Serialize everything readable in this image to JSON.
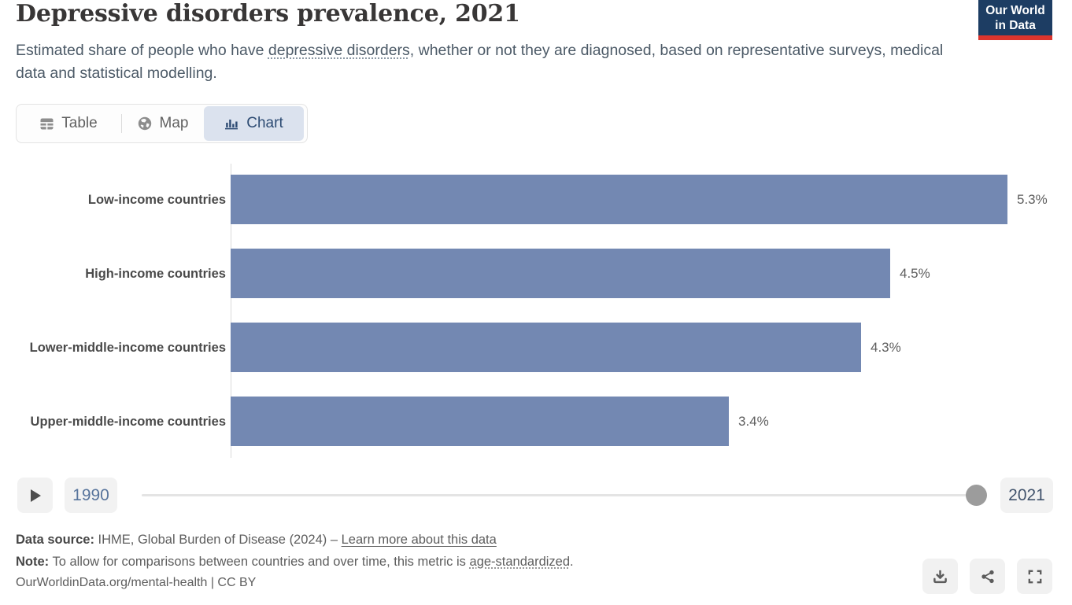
{
  "header": {
    "title": "Depressive disorders prevalence, 2021",
    "subtitle_pre": "Estimated share of people who have ",
    "subtitle_term": "depressive disorders",
    "subtitle_post": ", whether or not they are diagnosed, based on representative surveys, medical data and statistical modelling.",
    "logo_line1": "Our World",
    "logo_line2": "in Data"
  },
  "tabs": [
    {
      "label": "Table",
      "icon": "table-icon",
      "selected": false
    },
    {
      "label": "Map",
      "icon": "globe-icon",
      "selected": false
    },
    {
      "label": "Chart",
      "icon": "bar-chart-icon",
      "selected": true
    }
  ],
  "chart_data": {
    "type": "bar",
    "orientation": "horizontal",
    "title": "Depressive disorders prevalence, 2021",
    "categories": [
      "Low-income countries",
      "High-income countries",
      "Lower-middle-income countries",
      "Upper-middle-income countries"
    ],
    "values": [
      5.3,
      4.5,
      4.3,
      3.4
    ],
    "value_labels": [
      "5.3%",
      "4.5%",
      "4.3%",
      "3.4%"
    ],
    "unit": "%",
    "xlim": [
      0,
      5.7
    ],
    "grid": false,
    "legend": "none",
    "bar_color": "#7388b2"
  },
  "timeline": {
    "play_icon": "play-icon",
    "start_year": "1990",
    "end_year": "2021",
    "selected_year": "2021",
    "handle_position": "end"
  },
  "footer": {
    "source_label": "Data source:",
    "source_text": " IHME, Global Burden of Disease (2024) – ",
    "source_link": "Learn more about this data",
    "note_label": "Note:",
    "note_pre": " To allow for comparisons between countries and over time, this metric is ",
    "note_term": "age-standardized",
    "note_post": ".",
    "citation": "OurWorldinData.org/mental-health | CC BY",
    "actions": [
      "download-icon",
      "share-icon",
      "fullscreen-icon"
    ]
  },
  "colors": {
    "bar": "#7388b2",
    "logo_navy": "#1d3d63",
    "logo_red": "#dc352e",
    "tab_selected_bg": "#dbe2ee",
    "tab_selected_text": "#2d4b73",
    "axis_line": "#dadada",
    "text_gray": "#5d5d5d"
  }
}
